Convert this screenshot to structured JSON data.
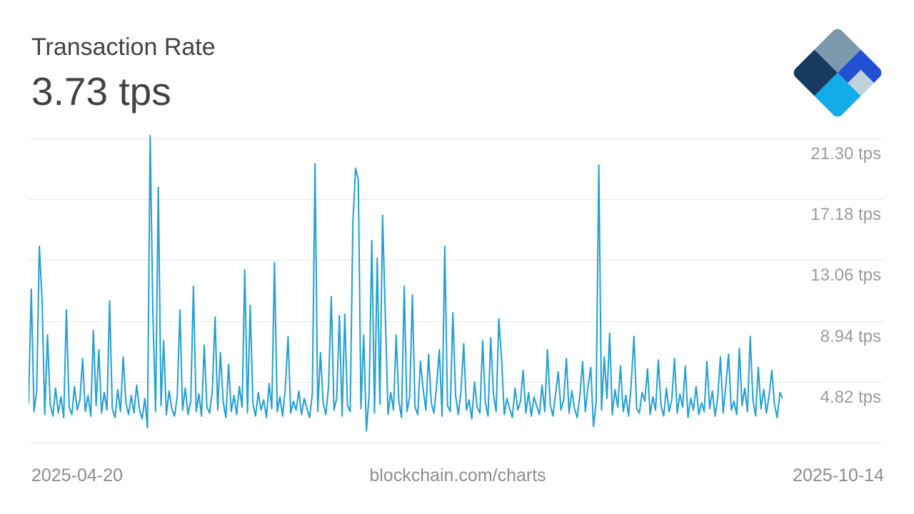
{
  "header": {
    "title": "Transaction Rate",
    "current_value": "3.73 tps"
  },
  "logo": {
    "slate": "#7C99AB",
    "royal": "#2150D4",
    "navy": "#173A5E",
    "cyan": "#12ADE8",
    "pale": "#BFD2DC"
  },
  "footer": {
    "start_date": "2025-04-20",
    "watermark": "blockchain.com/charts",
    "end_date": "2025-10-14"
  },
  "chart_data": {
    "type": "line",
    "title": "Transaction Rate",
    "current_value": "3.73 tps",
    "unit": "tps",
    "xlabel": "",
    "ylabel": "",
    "x_range": [
      "2025-04-20",
      "2025-10-14"
    ],
    "ylim": [
      0.7,
      21.84
    ],
    "yticks": [
      21.3,
      17.18,
      13.06,
      8.94,
      4.82,
      0.7
    ],
    "ytick_labels": [
      "21.30 tps",
      "17.18 tps",
      "13.06 tps",
      "8.94 tps",
      "4.82 tps",
      ""
    ],
    "grid": true,
    "legend_position": "none",
    "line_color": "#219FD6",
    "values": [
      3.4,
      11.1,
      2.8,
      4.2,
      14.0,
      10.4,
      2.6,
      8.0,
      3.3,
      2.5,
      4.4,
      2.7,
      3.8,
      2.4,
      9.7,
      3.1,
      2.6,
      4.5,
      2.9,
      3.6,
      6.4,
      2.8,
      3.9,
      2.5,
      8.3,
      3.2,
      7.0,
      2.7,
      4.1,
      2.9,
      10.3,
      3.0,
      2.4,
      4.3,
      2.8,
      6.5,
      3.4,
      2.6,
      3.9,
      2.7,
      4.6,
      3.0,
      2.3,
      3.7,
      1.7,
      21.5,
      9.4,
      2.8,
      18.0,
      3.2,
      7.6,
      2.6,
      4.2,
      3.0,
      2.5,
      3.8,
      9.7,
      2.9,
      4.4,
      2.6,
      3.5,
      11.3,
      2.8,
      4.0,
      2.5,
      7.3,
      3.1,
      2.7,
      4.3,
      9.2,
      2.9,
      6.8,
      3.5,
      2.4,
      6.0,
      2.8,
      3.9,
      2.6,
      4.5,
      3.1,
      12.4,
      2.7,
      10.0,
      3.3,
      2.5,
      4.1,
      2.9,
      3.6,
      2.4,
      4.7,
      3.0,
      12.9,
      2.8,
      3.8,
      2.5,
      4.4,
      7.9,
      2.7,
      3.5,
      2.9,
      4.2,
      2.6,
      3.7,
      3.0,
      2.4,
      4.0,
      19.6,
      2.8,
      6.8,
      3.4,
      2.6,
      4.5,
      10.6,
      2.9,
      3.7,
      9.3,
      2.5,
      9.4,
      3.2,
      2.8,
      15.6,
      19.3,
      18.5,
      3.0,
      8.0,
      1.5,
      3.9,
      14.4,
      2.7,
      13.2,
      3.3,
      16.1,
      9.3,
      2.6,
      4.1,
      2.9,
      8.0,
      3.5,
      2.4,
      11.3,
      2.8,
      3.8,
      10.7,
      3.1,
      2.6,
      6.2,
      4.3,
      2.9,
      6.7,
      3.4,
      2.7,
      4.6,
      7.0,
      2.5,
      14.0,
      3.2,
      2.8,
      9.5,
      3.9,
      2.6,
      4.2,
      7.4,
      2.9,
      3.6,
      2.3,
      4.8,
      3.1,
      2.7,
      7.6,
      3.4,
      2.5,
      7.8,
      4.0,
      2.8,
      9.1,
      6.4,
      2.6,
      3.7,
      3.0,
      2.4,
      4.4,
      2.9,
      3.5,
      5.6,
      2.7,
      4.1,
      2.5,
      3.8,
      3.2,
      2.6,
      4.6,
      2.8,
      7.0,
      3.3,
      2.5,
      4.0,
      5.5,
      2.9,
      3.6,
      6.4,
      2.7,
      4.2,
      3.0,
      2.4,
      3.9,
      6.2,
      2.8,
      4.5,
      5.8,
      1.8,
      3.4,
      19.5,
      2.9,
      6.5,
      3.7,
      8.1,
      2.6,
      4.3,
      3.1,
      5.9,
      2.8,
      3.9,
      2.5,
      4.7,
      7.9,
      3.0,
      2.7,
      4.1,
      3.5,
      5.7,
      2.6,
      3.8,
      2.9,
      6.3,
      3.2,
      2.5,
      4.4,
      2.8,
      3.6,
      6.4,
      2.7,
      4.0,
      3.1,
      5.9,
      2.4,
      3.7,
      2.9,
      4.5,
      2.6,
      3.4,
      2.8,
      6.2,
      3.0,
      4.2,
      2.5,
      3.8,
      6.5,
      2.7,
      4.6,
      6.7,
      2.9,
      3.5,
      2.6,
      7.1,
      3.2,
      4.4,
      2.8,
      7.9,
      3.6,
      2.5,
      5.8,
      3.0,
      4.3,
      2.7,
      3.9,
      5.6,
      3.3,
      2.4,
      4.1,
      3.7
    ]
  }
}
